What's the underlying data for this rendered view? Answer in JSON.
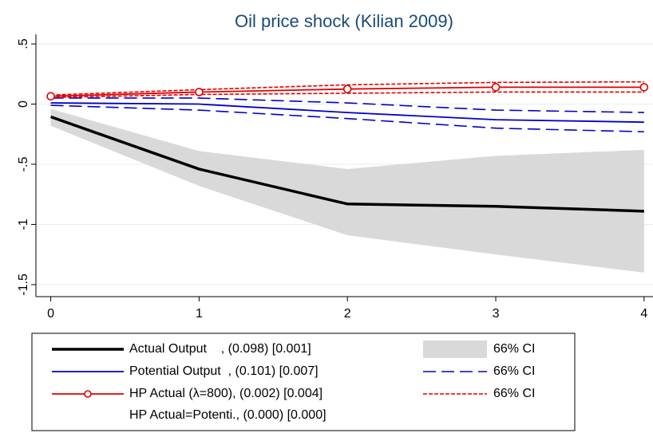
{
  "chart_data": {
    "type": "line",
    "title": "Oil price shock (Kilian 2009)",
    "x": [
      0,
      1,
      2,
      3,
      4
    ],
    "xlim": [
      -0.1,
      4.06
    ],
    "xticks": [
      0,
      1,
      2,
      3,
      4
    ],
    "ylim": [
      -1.6,
      0.58
    ],
    "yticks": [
      {
        "value": 0.5,
        "label": ".5"
      },
      0,
      {
        "value": -0.5,
        "label": "-.5"
      },
      -1,
      {
        "value": -1.5,
        "label": "-1.5"
      }
    ],
    "grid": true,
    "series": [
      {
        "name": "Actual Output    , (0.098) [0.001]",
        "color": "#000000",
        "values": [
          -0.106,
          -0.54,
          -0.83,
          -0.85,
          -0.89
        ]
      },
      {
        "name": "Potential Output  , (0.101) [0.007]",
        "color": "#0000cc",
        "values": [
          0.01,
          0.0,
          -0.07,
          -0.13,
          -0.15
        ]
      },
      {
        "name": "HP Actual (λ=800), (0.002) [0.004]",
        "color": "#e00000",
        "marker": "circle",
        "values": [
          0.065,
          0.1,
          0.125,
          0.14,
          0.14
        ]
      }
    ],
    "bands": [
      {
        "name": "66% CI",
        "style": "area",
        "color": "#d9d9d9",
        "lower": [
          -0.18,
          -0.68,
          -1.09,
          -1.25,
          -1.4
        ],
        "upper": [
          -0.04,
          -0.39,
          -0.54,
          -0.43,
          -0.38
        ]
      },
      {
        "name": "66% CI",
        "style": "long-dash",
        "color": "#0000cc",
        "lower": [
          -0.01,
          -0.05,
          -0.12,
          -0.2,
          -0.23
        ],
        "upper": [
          0.05,
          0.05,
          0.01,
          -0.05,
          -0.07
        ]
      },
      {
        "name": "66% CI",
        "style": "short-dash",
        "color": "#e00000",
        "lower": [
          0.055,
          0.08,
          0.09,
          0.1,
          0.1
        ],
        "upper": [
          0.075,
          0.12,
          0.16,
          0.18,
          0.185
        ]
      }
    ],
    "extra_legend_entries": [
      "HP Actual=Potenti., (0.000) [0.000]"
    ]
  }
}
